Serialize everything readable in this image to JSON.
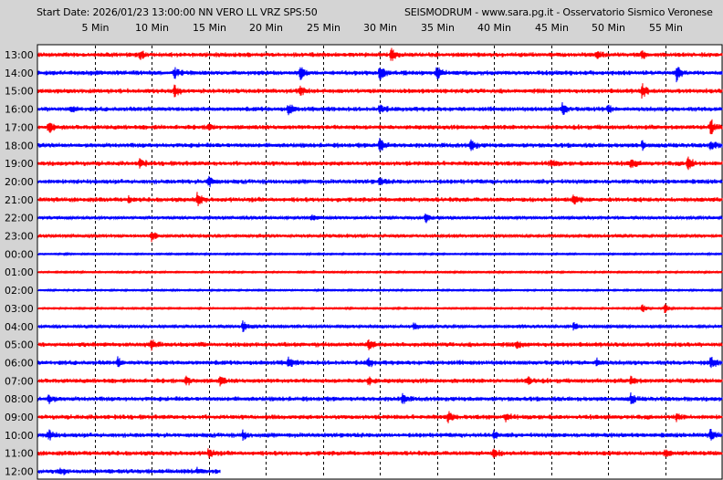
{
  "header": {
    "start_info": "Start Date: 2026/01/23 13:00:00 NN VERO LL VRZ SPS:50",
    "source": "SEISMODRUM - www.sara.pg.it - Osservatorio Sismico Veronese"
  },
  "chart_data": {
    "type": "line",
    "title": "",
    "x_unit": "Min",
    "x_range": [
      0,
      60
    ],
    "x_ticks": [
      5,
      10,
      15,
      20,
      25,
      30,
      35,
      40,
      45,
      50,
      55
    ],
    "x_tick_labels": [
      "5 Min",
      "10 Min",
      "15 Min",
      "20 Min",
      "25 Min",
      "30 Min",
      "35 Min",
      "40 Min",
      "45 Min",
      "50 Min",
      "55 Min"
    ],
    "grid": "dashed vertical at each 5 min",
    "rows": [
      "13:00",
      "14:00",
      "15:00",
      "16:00",
      "17:00",
      "18:00",
      "19:00",
      "20:00",
      "21:00",
      "22:00",
      "23:00",
      "00:00",
      "01:00",
      "02:00",
      "03:00",
      "04:00",
      "05:00",
      "06:00",
      "07:00",
      "08:00",
      "09:00",
      "10:00",
      "11:00",
      "12:00"
    ],
    "row_colors": [
      "#ff0000",
      "#0000ff"
    ],
    "last_row_end_minute": 16,
    "series": [
      {
        "row": "13:00",
        "color": "red",
        "noise": 3,
        "events": [
          [
            9,
            5
          ],
          [
            31,
            8
          ],
          [
            49,
            4
          ],
          [
            53,
            5
          ]
        ]
      },
      {
        "row": "14:00",
        "color": "blue",
        "noise": 3,
        "events": [
          [
            12,
            5
          ],
          [
            23,
            8
          ],
          [
            30,
            9
          ],
          [
            35,
            7
          ],
          [
            56,
            9
          ]
        ]
      },
      {
        "row": "15:00",
        "color": "red",
        "noise": 3,
        "events": [
          [
            12,
            7
          ],
          [
            23,
            5
          ],
          [
            53,
            9
          ]
        ]
      },
      {
        "row": "16:00",
        "color": "blue",
        "noise": 3,
        "events": [
          [
            3,
            4
          ],
          [
            22,
            6
          ],
          [
            30,
            5
          ],
          [
            46,
            7
          ],
          [
            50,
            4
          ]
        ]
      },
      {
        "row": "17:00",
        "color": "red",
        "noise": 3,
        "events": [
          [
            1,
            6
          ],
          [
            15,
            4
          ],
          [
            59,
            9
          ]
        ]
      },
      {
        "row": "18:00",
        "color": "blue",
        "noise": 3,
        "events": [
          [
            30,
            8
          ],
          [
            38,
            6
          ],
          [
            53,
            5
          ],
          [
            59,
            6
          ]
        ]
      },
      {
        "row": "19:00",
        "color": "red",
        "noise": 3,
        "events": [
          [
            9,
            5
          ],
          [
            45,
            4
          ],
          [
            52,
            6
          ],
          [
            57,
            10
          ]
        ]
      },
      {
        "row": "20:00",
        "color": "blue",
        "noise": 3,
        "events": [
          [
            15,
            6
          ],
          [
            30,
            4
          ]
        ]
      },
      {
        "row": "21:00",
        "color": "red",
        "noise": 3,
        "events": [
          [
            8,
            4
          ],
          [
            14,
            7
          ],
          [
            47,
            6
          ]
        ]
      },
      {
        "row": "22:00",
        "color": "blue",
        "noise": 2,
        "events": [
          [
            24,
            4
          ],
          [
            34,
            6
          ]
        ]
      },
      {
        "row": "23:00",
        "color": "red",
        "noise": 2,
        "events": [
          [
            10,
            6
          ]
        ]
      },
      {
        "row": "00:00",
        "color": "blue",
        "noise": 1,
        "events": []
      },
      {
        "row": "01:00",
        "color": "red",
        "noise": 1,
        "events": []
      },
      {
        "row": "02:00",
        "color": "blue",
        "noise": 1,
        "events": []
      },
      {
        "row": "03:00",
        "color": "red",
        "noise": 1,
        "events": [
          [
            53,
            5
          ],
          [
            55,
            6
          ]
        ]
      },
      {
        "row": "04:00",
        "color": "blue",
        "noise": 2,
        "events": [
          [
            18,
            6
          ],
          [
            33,
            4
          ],
          [
            47,
            5
          ]
        ]
      },
      {
        "row": "05:00",
        "color": "red",
        "noise": 3,
        "events": [
          [
            10,
            5
          ],
          [
            29,
            6
          ],
          [
            42,
            4
          ]
        ]
      },
      {
        "row": "06:00",
        "color": "blue",
        "noise": 3,
        "events": [
          [
            7,
            5
          ],
          [
            22,
            6
          ],
          [
            29,
            5
          ],
          [
            49,
            4
          ],
          [
            59,
            7
          ]
        ]
      },
      {
        "row": "07:00",
        "color": "red",
        "noise": 3,
        "events": [
          [
            13,
            6
          ],
          [
            16,
            5
          ],
          [
            29,
            5
          ],
          [
            43,
            4
          ],
          [
            52,
            5
          ]
        ]
      },
      {
        "row": "08:00",
        "color": "blue",
        "noise": 3,
        "events": [
          [
            1,
            5
          ],
          [
            32,
            5
          ],
          [
            52,
            6
          ]
        ]
      },
      {
        "row": "09:00",
        "color": "red",
        "noise": 3,
        "events": [
          [
            36,
            6
          ],
          [
            41,
            5
          ],
          [
            56,
            4
          ]
        ]
      },
      {
        "row": "10:00",
        "color": "blue",
        "noise": 3,
        "events": [
          [
            1,
            6
          ],
          [
            18,
            5
          ],
          [
            40,
            5
          ],
          [
            59,
            6
          ]
        ]
      },
      {
        "row": "11:00",
        "color": "red",
        "noise": 3,
        "events": [
          [
            15,
            5
          ],
          [
            40,
            5
          ],
          [
            55,
            4
          ]
        ]
      },
      {
        "row": "12:00",
        "color": "blue",
        "noise": 3,
        "events": [
          [
            2,
            4
          ],
          [
            14,
            3
          ]
        ]
      }
    ]
  }
}
